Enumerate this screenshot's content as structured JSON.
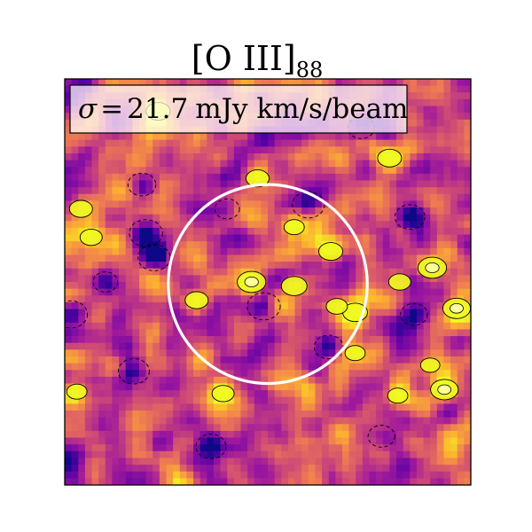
{
  "chart_data": {
    "type": "heatmap",
    "title": {
      "main": "[O III]",
      "subscript": "88"
    },
    "annotation": {
      "symbol": "σ",
      "equals": "=",
      "value": "21.7",
      "unit": "mJy km/s/beam"
    },
    "colormap": "plasma",
    "colormap_stops": [
      "#0d0887",
      "#5c01a6",
      "#9c179e",
      "#cc4778",
      "#ed7953",
      "#fdb42f",
      "#f0f921"
    ],
    "contour_colors": {
      "positive_line": "#000000",
      "negative_line": "#000000",
      "aperture": "#ffffff"
    },
    "positive_sources": [
      {
        "id": "center-left",
        "x": 0.46,
        "y": 0.5,
        "peak": 1.0
      },
      {
        "id": "center-right",
        "x": 0.565,
        "y": 0.51,
        "peak": 0.85
      },
      {
        "id": "right-1",
        "x": 0.905,
        "y": 0.465,
        "peak": 1.0
      },
      {
        "id": "right-2",
        "x": 0.965,
        "y": 0.565,
        "peak": 0.95
      },
      {
        "id": "right-3",
        "x": 0.655,
        "y": 0.425,
        "peak": 0.75
      },
      {
        "id": "lower-right",
        "x": 0.935,
        "y": 0.765,
        "peak": 0.95
      },
      {
        "id": "lower-mid",
        "x": 0.715,
        "y": 0.575,
        "peak": 0.8
      },
      {
        "id": "upper-right",
        "x": 0.8,
        "y": 0.195,
        "peak": 0.75
      },
      {
        "id": "upper-mid",
        "x": 0.475,
        "y": 0.245,
        "peak": 0.7
      },
      {
        "id": "left-1",
        "x": 0.04,
        "y": 0.32,
        "peak": 0.7
      },
      {
        "id": "left-2",
        "x": 0.065,
        "y": 0.39,
        "peak": 0.65
      },
      {
        "id": "left-3",
        "x": 0.325,
        "y": 0.545,
        "peak": 0.7
      },
      {
        "id": "bottom-1",
        "x": 0.39,
        "y": 0.775,
        "peak": 0.65
      },
      {
        "id": "bottom-2",
        "x": 0.67,
        "y": 0.56,
        "peak": 0.6
      },
      {
        "id": "right-4",
        "x": 0.825,
        "y": 0.5,
        "peak": 0.65
      },
      {
        "id": "right-5",
        "x": 0.565,
        "y": 0.365,
        "peak": 0.55
      },
      {
        "id": "far-left",
        "x": 0.03,
        "y": 0.77,
        "peak": 0.55
      },
      {
        "id": "bottom-3",
        "x": 0.82,
        "y": 0.78,
        "peak": 0.55
      },
      {
        "id": "bottom-4",
        "x": 0.9,
        "y": 0.705,
        "peak": 0.5
      },
      {
        "id": "right-6",
        "x": 0.715,
        "y": 0.675,
        "peak": 0.55
      },
      {
        "id": "top-blob",
        "x": 0.23,
        "y": 0.08,
        "peak": 0.75
      }
    ],
    "negative_sources": [
      {
        "id": "neg-center",
        "x": 0.49,
        "y": 0.56,
        "peak": 1.0
      },
      {
        "id": "neg-left-strip-1",
        "x": 0.2,
        "y": 0.38,
        "peak": 1.0
      },
      {
        "id": "neg-left-strip-2",
        "x": 0.22,
        "y": 0.44,
        "peak": 0.95
      },
      {
        "id": "neg-left-edge",
        "x": 0.015,
        "y": 0.58,
        "peak": 1.0
      },
      {
        "id": "neg-upper-mid",
        "x": 0.6,
        "y": 0.31,
        "peak": 0.95
      },
      {
        "id": "neg-right-up",
        "x": 0.85,
        "y": 0.34,
        "peak": 0.85
      },
      {
        "id": "neg-lower-left",
        "x": 0.17,
        "y": 0.72,
        "peak": 0.9
      },
      {
        "id": "neg-lower-mid",
        "x": 0.65,
        "y": 0.66,
        "peak": 0.8
      },
      {
        "id": "neg-bottom",
        "x": 0.36,
        "y": 0.905,
        "peak": 0.85
      },
      {
        "id": "neg-upper-left",
        "x": 0.19,
        "y": 0.26,
        "peak": 0.75
      },
      {
        "id": "neg-top-right",
        "x": 0.73,
        "y": 0.12,
        "peak": 0.7
      },
      {
        "id": "neg-mid-right",
        "x": 0.86,
        "y": 0.58,
        "peak": 0.7
      },
      {
        "id": "neg-lower-right",
        "x": 0.78,
        "y": 0.88,
        "peak": 0.7
      },
      {
        "id": "neg-left-mid",
        "x": 0.1,
        "y": 0.5,
        "peak": 0.6
      },
      {
        "id": "neg-center-up",
        "x": 0.4,
        "y": 0.32,
        "peak": 0.6
      }
    ],
    "aperture": {
      "cx": 0.5,
      "cy": 0.505,
      "r": 0.245
    }
  }
}
